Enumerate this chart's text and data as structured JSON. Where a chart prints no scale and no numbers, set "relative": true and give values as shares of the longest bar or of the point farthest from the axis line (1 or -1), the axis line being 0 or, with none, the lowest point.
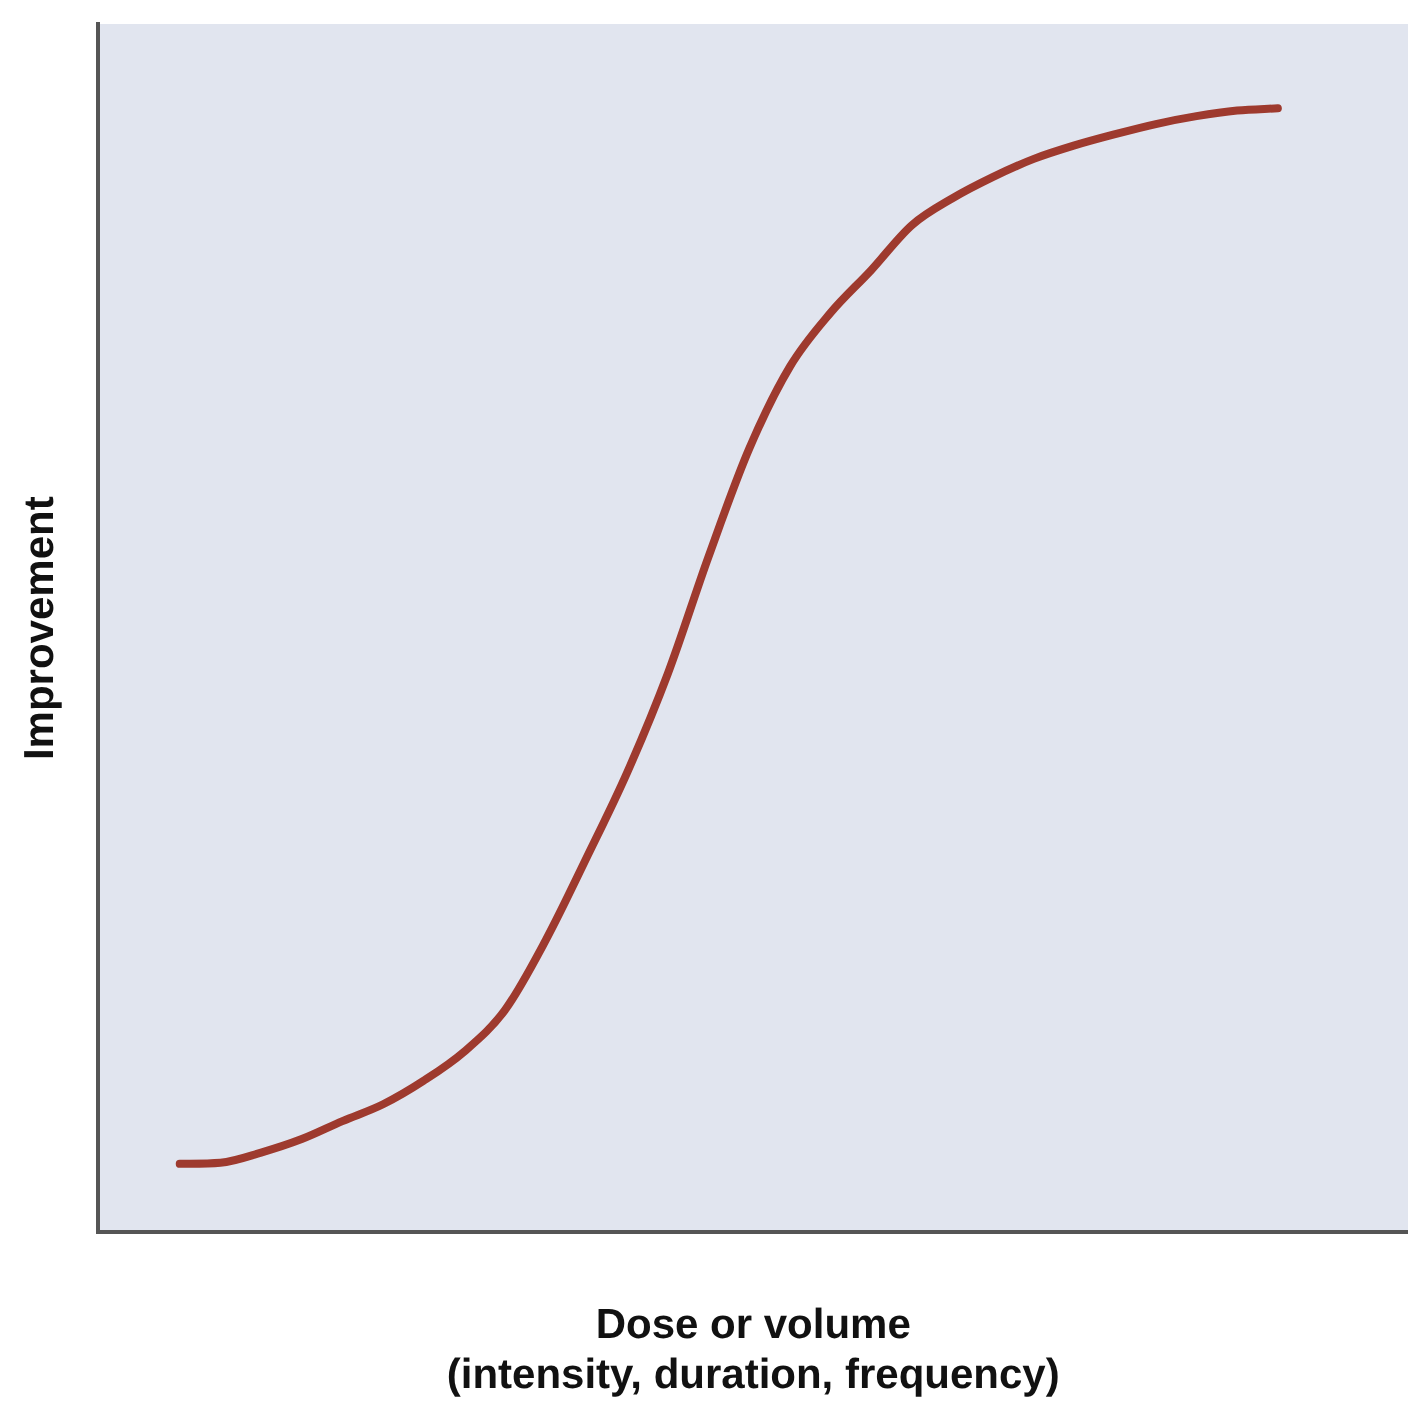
{
  "chart_data": {
    "type": "line",
    "relative": true,
    "xlabel": "Dose or volume\n(intensity, duration, frequency)",
    "ylabel": "Improvement",
    "categories": [
      null,
      null,
      null,
      null,
      null,
      null,
      null,
      null,
      null,
      null,
      null,
      null,
      null,
      null,
      null,
      null,
      null,
      null,
      null,
      null,
      null,
      null,
      null,
      null,
      null,
      null,
      null,
      null
    ],
    "series": [
      {
        "color": "#9e3a2e",
        "values": [
          0.061,
          0.062,
          0.071,
          0.083,
          0.099,
          0.114,
          0.135,
          0.161,
          0.198,
          0.26,
          0.333,
          0.409,
          0.497,
          0.601,
          0.697,
          0.77,
          0.818,
          0.856,
          0.896,
          0.92,
          0.939,
          0.955,
          0.967,
          0.977,
          0.986,
          0.993,
          0.998,
          1.0
        ]
      }
    ],
    "grid": false,
    "legend": false,
    "marker": "none",
    "line_style": "solid"
  }
}
